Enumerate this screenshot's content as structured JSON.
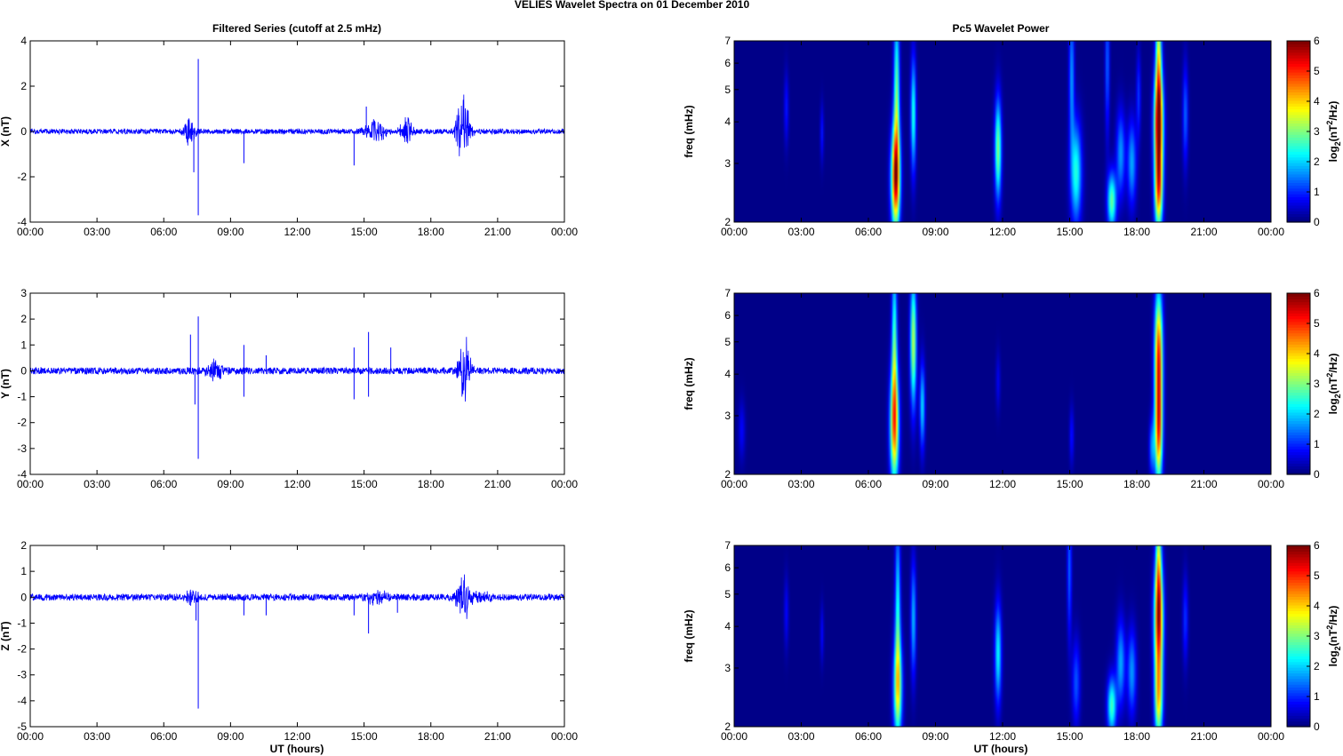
{
  "figure": {
    "title": "VELIES Wavelet Spectra on 01 December  2010",
    "left_title": "Filtered Series (cutoff at 2.5 mHz)",
    "right_title": "Pc5 Wavelet Power",
    "xlabel": "UT (hours)"
  },
  "chart_data": [
    {
      "type": "line",
      "component": "X",
      "ylabel": "X (nT)",
      "xticks": [
        "00:00",
        "03:00",
        "06:00",
        "09:00",
        "12:00",
        "15:00",
        "18:00",
        "21:00",
        "00:00"
      ],
      "xlim_hours": [
        0,
        24
      ],
      "ylim": [
        -4,
        4
      ],
      "yticks": [
        -4,
        -2,
        0,
        2,
        4
      ],
      "noise_nT": 0.07,
      "events": [
        {
          "t": 7.15,
          "amp": 0.7,
          "width": 0.25
        },
        {
          "t": 7.55,
          "amp": 3.2,
          "spike": true
        },
        {
          "t": 7.55,
          "amp": -3.7,
          "spike": true
        },
        {
          "t": 7.35,
          "amp": -1.8,
          "spike": true
        },
        {
          "t": 9.6,
          "amp": -1.4,
          "spike": true
        },
        {
          "t": 14.55,
          "amp": -1.5,
          "spike": true
        },
        {
          "t": 15.1,
          "amp": 1.1,
          "spike": true
        },
        {
          "t": 15.5,
          "amp": 0.5,
          "width": 0.5
        },
        {
          "t": 16.9,
          "amp": 0.6,
          "width": 0.3
        },
        {
          "t": 19.45,
          "amp": 1.1,
          "width": 0.3
        },
        {
          "t": 19.45,
          "amp": -0.9,
          "width": 0.3
        }
      ]
    },
    {
      "type": "line",
      "component": "Y",
      "ylabel": "Y (nT)",
      "xticks": [
        "00:00",
        "03:00",
        "06:00",
        "09:00",
        "12:00",
        "15:00",
        "18:00",
        "21:00",
        "00:00"
      ],
      "xlim_hours": [
        0,
        24
      ],
      "ylim": [
        -4,
        3
      ],
      "yticks": [
        -4,
        -3,
        -2,
        -1,
        0,
        1,
        2,
        3
      ],
      "noise_nT": 0.08,
      "events": [
        {
          "t": 7.2,
          "amp": 1.4,
          "spike": true
        },
        {
          "t": 7.55,
          "amp": 2.1,
          "spike": true
        },
        {
          "t": 7.55,
          "amp": -3.4,
          "spike": true
        },
        {
          "t": 7.4,
          "amp": -1.3,
          "spike": true
        },
        {
          "t": 8.3,
          "amp": 0.4,
          "width": 0.4
        },
        {
          "t": 9.6,
          "amp": 1.0,
          "spike": true
        },
        {
          "t": 9.6,
          "amp": -1.0,
          "spike": true
        },
        {
          "t": 10.6,
          "amp": 0.6,
          "spike": true
        },
        {
          "t": 14.55,
          "amp": 0.9,
          "spike": true
        },
        {
          "t": 14.55,
          "amp": -1.1,
          "spike": true
        },
        {
          "t": 15.2,
          "amp": 1.5,
          "spike": true
        },
        {
          "t": 15.2,
          "amp": -1.0,
          "spike": true
        },
        {
          "t": 16.2,
          "amp": 0.9,
          "spike": true
        },
        {
          "t": 19.55,
          "amp": 0.8,
          "width": 0.3
        },
        {
          "t": 19.55,
          "amp": -0.8,
          "width": 0.3
        }
      ]
    },
    {
      "type": "line",
      "component": "Z",
      "ylabel": "Z (nT)",
      "xticks": [
        "00:00",
        "03:00",
        "06:00",
        "09:00",
        "12:00",
        "15:00",
        "18:00",
        "21:00",
        "00:00"
      ],
      "xlim_hours": [
        0,
        24
      ],
      "ylim": [
        -5,
        2
      ],
      "yticks": [
        -5,
        -4,
        -3,
        -2,
        -1,
        0,
        1,
        2
      ],
      "noise_nT": 0.08,
      "events": [
        {
          "t": 7.3,
          "amp": 0.3,
          "width": 0.3
        },
        {
          "t": 7.55,
          "amp": -4.3,
          "spike": true
        },
        {
          "t": 7.45,
          "amp": -0.9,
          "spike": true
        },
        {
          "t": 9.6,
          "amp": -0.7,
          "spike": true
        },
        {
          "t": 10.6,
          "amp": -0.7,
          "spike": true
        },
        {
          "t": 14.55,
          "amp": -0.7,
          "spike": true
        },
        {
          "t": 15.2,
          "amp": -1.4,
          "spike": true
        },
        {
          "t": 15.6,
          "amp": 0.3,
          "width": 0.5
        },
        {
          "t": 16.5,
          "amp": -0.6,
          "spike": true
        },
        {
          "t": 19.45,
          "amp": 0.8,
          "width": 0.3
        },
        {
          "t": 19.45,
          "amp": -0.5,
          "width": 0.3
        },
        {
          "t": 20.3,
          "amp": 0.2,
          "width": 0.5
        }
      ]
    },
    {
      "type": "heatmap",
      "component": "X",
      "ylabel": "freq (mHz)",
      "yscale": "log",
      "ylim": [
        2,
        7
      ],
      "yticks": [
        2,
        3,
        4,
        5,
        6,
        7
      ],
      "xticks": [
        "00:00",
        "03:00",
        "06:00",
        "09:00",
        "12:00",
        "15:00",
        "18:00",
        "21:00",
        "00:00"
      ],
      "xlim_hours": [
        0,
        24
      ],
      "colorbar": {
        "label": "log2(nT^2/Hz)",
        "range": [
          0,
          6
        ],
        "ticks": [
          0,
          1,
          2,
          3,
          4,
          5,
          6
        ]
      },
      "blobs": [
        {
          "t": 7.2,
          "f": 2.7,
          "peak": 5.2,
          "tw": 0.2,
          "fw": 0.35
        },
        {
          "t": 7.25,
          "f": 4.8,
          "peak": 2.8,
          "tw": 0.13,
          "fw": 0.6
        },
        {
          "t": 8.0,
          "f": 4.2,
          "peak": 2.4,
          "tw": 0.12,
          "fw": 0.4
        },
        {
          "t": 11.8,
          "f": 3.3,
          "peak": 3.0,
          "tw": 0.15,
          "fw": 0.35
        },
        {
          "t": 15.3,
          "f": 2.8,
          "peak": 2.4,
          "tw": 0.25,
          "fw": 0.35
        },
        {
          "t": 15.1,
          "f": 5.5,
          "peak": 1.6,
          "tw": 0.12,
          "fw": 0.5
        },
        {
          "t": 16.9,
          "f": 2.3,
          "peak": 2.8,
          "tw": 0.2,
          "fw": 0.2
        },
        {
          "t": 17.3,
          "f": 3.2,
          "peak": 1.6,
          "tw": 0.2,
          "fw": 0.3
        },
        {
          "t": 17.8,
          "f": 3.0,
          "peak": 1.7,
          "tw": 0.2,
          "fw": 0.3
        },
        {
          "t": 16.7,
          "f": 6.0,
          "peak": 1.3,
          "tw": 0.1,
          "fw": 0.5
        },
        {
          "t": 19.0,
          "f": 4.0,
          "peak": 5.8,
          "tw": 0.2,
          "fw": 0.35
        },
        {
          "t": 19.0,
          "f": 2.5,
          "peak": 4.4,
          "tw": 0.18,
          "fw": 0.3
        },
        {
          "t": 19.0,
          "f": 6.5,
          "peak": 3.0,
          "tw": 0.13,
          "fw": 0.4
        },
        {
          "t": 20.2,
          "f": 4.2,
          "peak": 1.3,
          "tw": 0.12,
          "fw": 0.35
        },
        {
          "t": 18.1,
          "f": 4.8,
          "peak": 1.0,
          "tw": 0.1,
          "fw": 0.3
        },
        {
          "t": 2.3,
          "f": 4.4,
          "peak": 0.8,
          "tw": 0.1,
          "fw": 0.25
        },
        {
          "t": 3.9,
          "f": 3.7,
          "peak": 0.8,
          "tw": 0.08,
          "fw": 0.2
        }
      ]
    },
    {
      "type": "heatmap",
      "component": "Y",
      "ylabel": "freq (mHz)",
      "yscale": "log",
      "ylim": [
        2,
        7
      ],
      "yticks": [
        2,
        3,
        4,
        5,
        6,
        7
      ],
      "xticks": [
        "00:00",
        "03:00",
        "06:00",
        "09:00",
        "12:00",
        "15:00",
        "18:00",
        "21:00",
        "00:00"
      ],
      "xlim_hours": [
        0,
        24
      ],
      "colorbar": {
        "label": "log2(nT^2/Hz)",
        "range": [
          0,
          6
        ],
        "ticks": [
          0,
          1,
          2,
          3,
          4,
          5,
          6
        ]
      },
      "blobs": [
        {
          "t": 7.15,
          "f": 2.8,
          "peak": 4.2,
          "tw": 0.2,
          "fw": 0.4
        },
        {
          "t": 7.15,
          "f": 5.0,
          "peak": 2.5,
          "tw": 0.12,
          "fw": 0.6
        },
        {
          "t": 8.0,
          "f": 5.0,
          "peak": 3.3,
          "tw": 0.14,
          "fw": 0.45
        },
        {
          "t": 8.4,
          "f": 3.2,
          "peak": 2.0,
          "tw": 0.12,
          "fw": 0.3
        },
        {
          "t": 19.0,
          "f": 4.5,
          "peak": 5.0,
          "tw": 0.18,
          "fw": 0.45
        },
        {
          "t": 19.0,
          "f": 2.6,
          "peak": 4.0,
          "tw": 0.17,
          "fw": 0.35
        },
        {
          "t": 18.7,
          "f": 2.4,
          "peak": 1.5,
          "tw": 0.12,
          "fw": 0.2
        },
        {
          "t": 15.1,
          "f": 2.6,
          "peak": 0.8,
          "tw": 0.1,
          "fw": 0.2
        },
        {
          "t": 0.3,
          "f": 2.7,
          "peak": 0.7,
          "tw": 0.15,
          "fw": 0.2
        },
        {
          "t": 11.8,
          "f": 3.8,
          "peak": 0.6,
          "tw": 0.1,
          "fw": 0.2
        }
      ]
    },
    {
      "type": "heatmap",
      "component": "Z",
      "ylabel": "freq (mHz)",
      "yscale": "log",
      "ylim": [
        2,
        7
      ],
      "yticks": [
        2,
        3,
        4,
        5,
        6,
        7
      ],
      "xticks": [
        "00:00",
        "03:00",
        "06:00",
        "09:00",
        "12:00",
        "15:00",
        "18:00",
        "21:00",
        "00:00"
      ],
      "xlim_hours": [
        0,
        24
      ],
      "colorbar": {
        "label": "log2(nT^2/Hz)",
        "range": [
          0,
          6
        ],
        "ticks": [
          0,
          1,
          2,
          3,
          4,
          5,
          6
        ]
      },
      "blobs": [
        {
          "t": 7.3,
          "f": 2.6,
          "peak": 3.3,
          "tw": 0.2,
          "fw": 0.35
        },
        {
          "t": 7.3,
          "f": 4.5,
          "peak": 2.2,
          "tw": 0.12,
          "fw": 0.6
        },
        {
          "t": 8.0,
          "f": 4.2,
          "peak": 1.8,
          "tw": 0.12,
          "fw": 0.4
        },
        {
          "t": 11.8,
          "f": 3.3,
          "peak": 2.2,
          "tw": 0.15,
          "fw": 0.35
        },
        {
          "t": 15.3,
          "f": 2.7,
          "peak": 1.2,
          "tw": 0.18,
          "fw": 0.3
        },
        {
          "t": 16.9,
          "f": 2.3,
          "peak": 2.6,
          "tw": 0.2,
          "fw": 0.2
        },
        {
          "t": 17.3,
          "f": 3.1,
          "peak": 1.7,
          "tw": 0.2,
          "fw": 0.3
        },
        {
          "t": 17.8,
          "f": 2.9,
          "peak": 1.6,
          "tw": 0.2,
          "fw": 0.3
        },
        {
          "t": 19.0,
          "f": 4.2,
          "peak": 5.3,
          "tw": 0.2,
          "fw": 0.4
        },
        {
          "t": 19.0,
          "f": 2.4,
          "peak": 3.5,
          "tw": 0.18,
          "fw": 0.3
        },
        {
          "t": 19.0,
          "f": 6.6,
          "peak": 2.3,
          "tw": 0.12,
          "fw": 0.4
        },
        {
          "t": 15.0,
          "f": 6.0,
          "peak": 1.3,
          "tw": 0.1,
          "fw": 0.5
        },
        {
          "t": 20.2,
          "f": 4.2,
          "peak": 1.0,
          "tw": 0.12,
          "fw": 0.3
        },
        {
          "t": 2.3,
          "f": 4.4,
          "peak": 0.7,
          "tw": 0.1,
          "fw": 0.25
        },
        {
          "t": 3.9,
          "f": 3.8,
          "peak": 0.7,
          "tw": 0.08,
          "fw": 0.2
        }
      ]
    }
  ]
}
